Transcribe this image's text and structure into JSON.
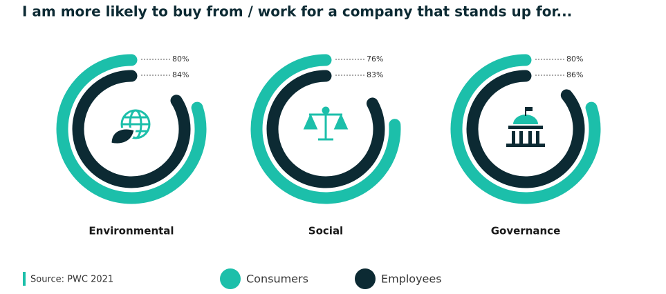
{
  "chart_data": {
    "type": "radial-bar",
    "title": "I am more likely to buy from / work for a company that stands up for...",
    "categories": [
      "Environmental",
      "Social",
      "Governance"
    ],
    "series": [
      {
        "name": "Consumers",
        "color": "#1cbfaa",
        "values": [
          80,
          76,
          80
        ],
        "value_labels": [
          "80%",
          "76%",
          "80%"
        ]
      },
      {
        "name": "Employees",
        "color": "#0c2a33",
        "values": [
          84,
          83,
          86
        ],
        "value_labels": [
          "84%",
          "83%",
          "86%"
        ]
      }
    ],
    "range": [
      0,
      100
    ],
    "source": "Source: PWC 2021"
  }
}
